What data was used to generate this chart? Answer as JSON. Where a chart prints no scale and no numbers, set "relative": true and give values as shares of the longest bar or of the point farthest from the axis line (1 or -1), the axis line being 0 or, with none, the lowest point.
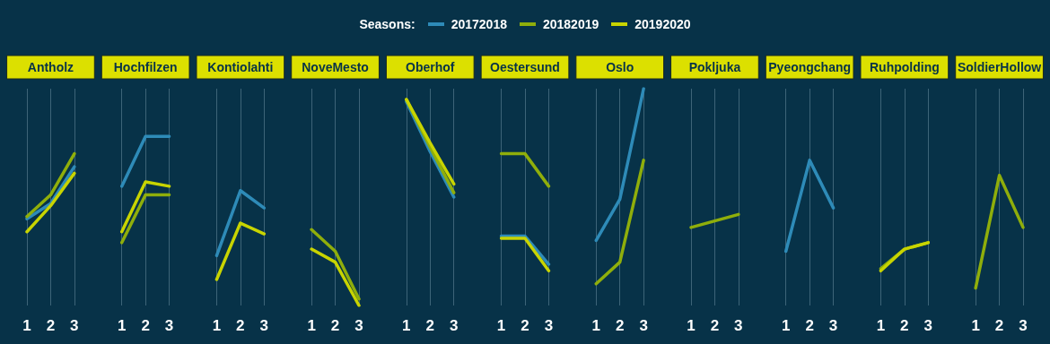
{
  "chart_data": {
    "type": "line",
    "legend": "top",
    "legend_title": "Seasons:",
    "relative": true,
    "grid": "x",
    "annotations": [
      "Antholz",
      "Hochfilzen",
      "Kontiolahti",
      "NoveMesto",
      "Oberhof",
      "Oestersund",
      "Oslo",
      "Pokljuka",
      "Pyeongchang",
      "Ruhpolding",
      "SoldierHollow"
    ],
    "categories": [
      "1",
      "2",
      "3",
      null,
      "1",
      "2",
      "3",
      null,
      "1",
      "2",
      "3",
      null,
      "1",
      "2",
      "3",
      null,
      "1",
      "2",
      "3",
      null,
      "1",
      "2",
      "3",
      null,
      "1",
      "2",
      "3",
      null,
      "1",
      "2",
      "3",
      null,
      "1",
      "2",
      "3",
      null,
      "1",
      "2",
      "3",
      null,
      "1",
      "2",
      "3"
    ],
    "series": [
      {
        "name": "20172018",
        "color": "#2e8bb8",
        "values": [
          0.4,
          0.47,
          0.64,
          null,
          0.55,
          0.78,
          0.78,
          null,
          0.23,
          0.53,
          0.45,
          null,
          null,
          null,
          null,
          null,
          0.94,
          0.71,
          0.5,
          null,
          0.32,
          0.32,
          0.19,
          null,
          0.3,
          0.49,
          1,
          null,
          null,
          null,
          null,
          null,
          0.25,
          0.67,
          0.45,
          null,
          null,
          null,
          null,
          null,
          null,
          null,
          null
        ]
      },
      {
        "name": "20182019",
        "color": "#8fae0b",
        "values": [
          0.41,
          0.51,
          0.7,
          null,
          0.29,
          0.51,
          0.51,
          null,
          null,
          null,
          null,
          null,
          0.35,
          0.25,
          0.03,
          null,
          0.95,
          0.73,
          0.52,
          null,
          0.7,
          0.7,
          0.55,
          null,
          0.1,
          0.2,
          0.67,
          null,
          0.36,
          0.39,
          0.42,
          null,
          null,
          null,
          null,
          null,
          0.17,
          0.26,
          0.29,
          null,
          0.08,
          0.6,
          0.36
        ]
      },
      {
        "name": "20192020",
        "color": "#c8d400",
        "values": [
          0.34,
          0.46,
          0.61,
          null,
          0.34,
          0.57,
          0.55,
          null,
          0.12,
          0.38,
          0.33,
          null,
          0.26,
          0.2,
          0,
          null,
          0.95,
          0.75,
          0.56,
          null,
          0.31,
          0.31,
          0.16,
          null,
          null,
          null,
          null,
          null,
          null,
          null,
          null,
          null,
          null,
          null,
          null,
          null,
          0.16,
          0.26,
          0.29,
          null,
          null,
          null,
          null
        ]
      }
    ]
  }
}
